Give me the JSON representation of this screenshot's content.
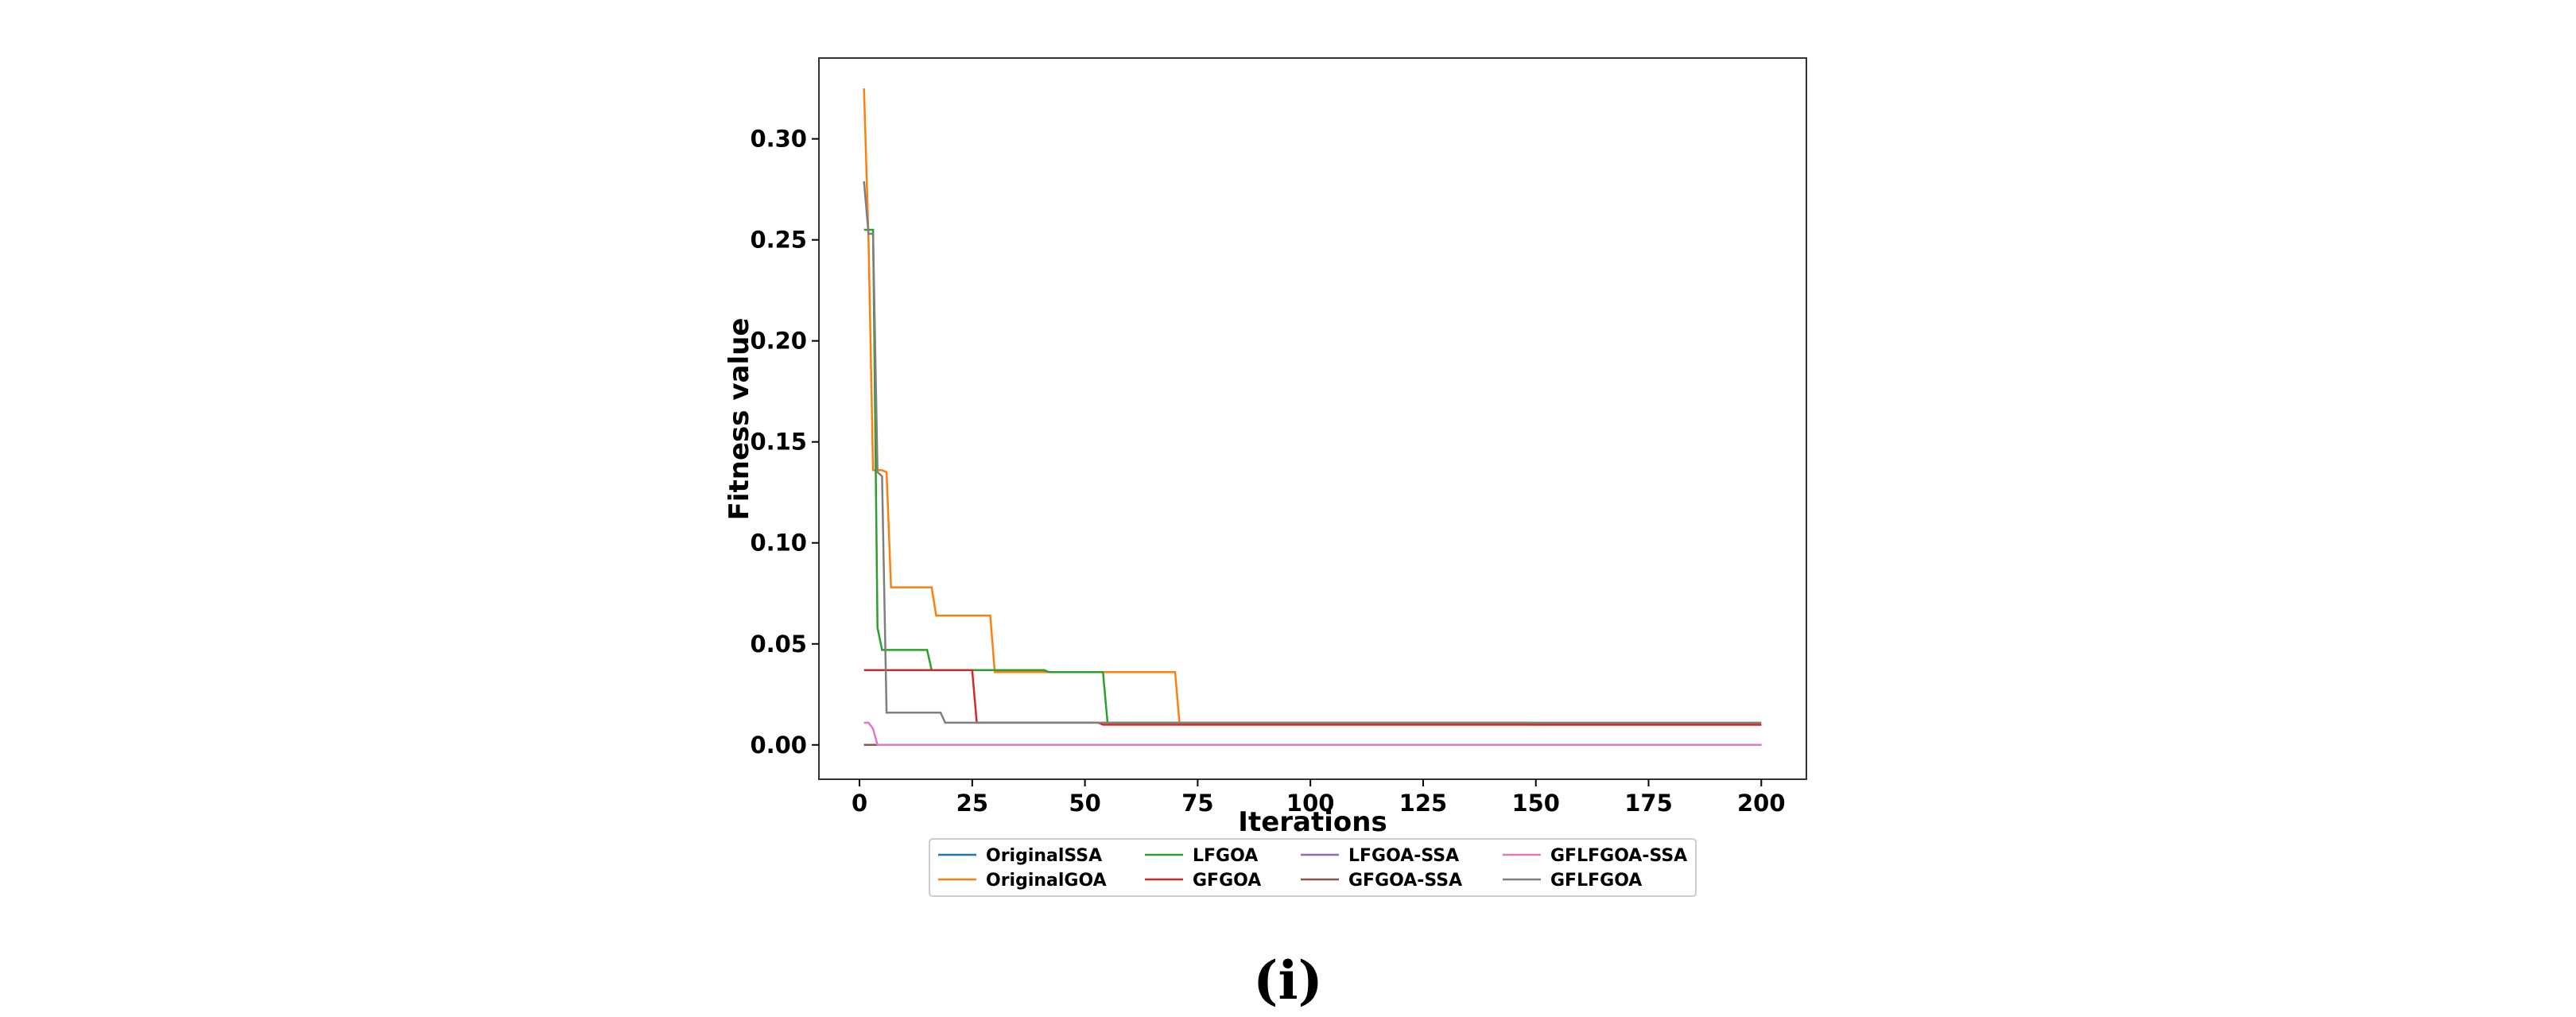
{
  "chart_data": {
    "type": "line",
    "title": "",
    "xlabel": "Iterations",
    "ylabel": "Fitness value",
    "xlim": [
      -9,
      210
    ],
    "ylim": [
      -0.017,
      0.34
    ],
    "x_ticks": [
      0,
      25,
      50,
      75,
      100,
      125,
      150,
      175,
      200
    ],
    "x_tick_labels": [
      "0",
      "25",
      "50",
      "75",
      "100",
      "125",
      "150",
      "175",
      "200"
    ],
    "y_ticks": [
      0.0,
      0.05,
      0.1,
      0.15,
      0.2,
      0.25,
      0.3
    ],
    "y_tick_labels": [
      "0.00",
      "0.05",
      "0.10",
      "0.15",
      "0.20",
      "0.25",
      "0.30"
    ],
    "grid": false,
    "legend_position": "below-center",
    "legend_columns": 4,
    "series": [
      {
        "name": "OriginalSSA",
        "color": "#1f77b4",
        "points": [
          [
            1,
            0.0
          ],
          [
            200,
            0.0
          ]
        ]
      },
      {
        "name": "OriginalGOA",
        "color": "#ff7f0e",
        "points": [
          [
            1,
            0.325
          ],
          [
            2,
            0.25
          ],
          [
            3,
            0.136
          ],
          [
            5,
            0.136
          ],
          [
            6,
            0.135
          ],
          [
            7,
            0.078
          ],
          [
            16,
            0.078
          ],
          [
            17,
            0.064
          ],
          [
            29,
            0.064
          ],
          [
            30,
            0.036
          ],
          [
            70,
            0.036
          ],
          [
            71,
            0.01
          ],
          [
            200,
            0.01
          ]
        ]
      },
      {
        "name": "LFGOA",
        "color": "#2ca02c",
        "points": [
          [
            1,
            0.255
          ],
          [
            3,
            0.255
          ],
          [
            4,
            0.058
          ],
          [
            5,
            0.047
          ],
          [
            15,
            0.047
          ],
          [
            16,
            0.037
          ],
          [
            41,
            0.037
          ],
          [
            42,
            0.036
          ],
          [
            54,
            0.036
          ],
          [
            55,
            0.011
          ],
          [
            148,
            0.011
          ],
          [
            149,
            0.01
          ],
          [
            200,
            0.01
          ]
        ]
      },
      {
        "name": "GFGOA",
        "color": "#d62728",
        "points": [
          [
            1,
            0.037
          ],
          [
            25,
            0.037
          ],
          [
            26,
            0.011
          ],
          [
            53,
            0.011
          ],
          [
            54,
            0.01
          ],
          [
            200,
            0.01
          ]
        ]
      },
      {
        "name": "LFGOA-SSA",
        "color": "#9467bd",
        "points": [
          [
            1,
            0.0
          ],
          [
            200,
            0.0
          ]
        ]
      },
      {
        "name": "GFGOA-SSA",
        "color": "#8c564b",
        "points": [
          [
            1,
            0.0
          ],
          [
            200,
            0.0
          ]
        ]
      },
      {
        "name": "GFLFGOA-SSA",
        "color": "#e377c2",
        "points": [
          [
            1,
            0.011
          ],
          [
            2,
            0.011
          ],
          [
            3,
            0.008
          ],
          [
            4,
            0.0
          ],
          [
            200,
            0.0
          ]
        ]
      },
      {
        "name": "GFLFGOA",
        "color": "#7f7f7f",
        "points": [
          [
            1,
            0.279
          ],
          [
            2,
            0.253
          ],
          [
            3,
            0.253
          ],
          [
            4,
            0.135
          ],
          [
            5,
            0.133
          ],
          [
            6,
            0.016
          ],
          [
            18,
            0.016
          ],
          [
            19,
            0.011
          ],
          [
            200,
            0.011
          ]
        ]
      }
    ]
  },
  "caption": "(i)"
}
